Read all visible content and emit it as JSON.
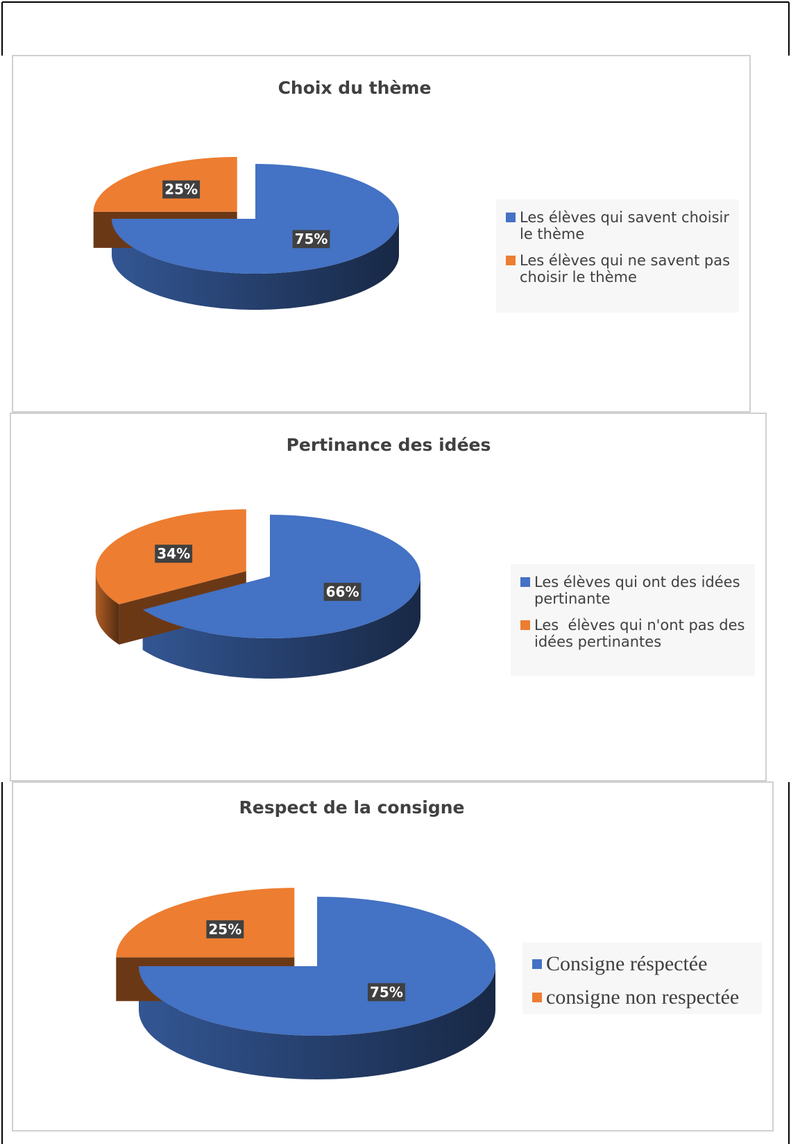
{
  "chart_data": [
    {
      "type": "pie",
      "title": "Choix du thème",
      "categories": [
        "Les élèves qui savent choisir le thème",
        "Les élèves qui ne savent pas choisir le thème"
      ],
      "values": [
        75,
        25
      ],
      "value_labels": [
        "75%",
        "25%"
      ],
      "colors": [
        "#4472c4",
        "#ed7d31"
      ],
      "legend": "right"
    },
    {
      "type": "pie",
      "title": "Pertinance des idées",
      "categories": [
        "Les élèves qui ont des idées pertinante",
        "Les  élèves qui n'ont pas des idées pertinantes"
      ],
      "values": [
        66,
        34
      ],
      "value_labels": [
        "66%",
        "34%"
      ],
      "colors": [
        "#4472c4",
        "#ed7d31"
      ],
      "legend": "right"
    },
    {
      "type": "pie",
      "title": "Respect de la consigne",
      "categories": [
        "Consigne réspectée",
        "consigne non respectée"
      ],
      "values": [
        75,
        25
      ],
      "value_labels": [
        "75%",
        "25%"
      ],
      "colors": [
        "#4472c4",
        "#ed7d31"
      ],
      "legend": "right"
    }
  ]
}
